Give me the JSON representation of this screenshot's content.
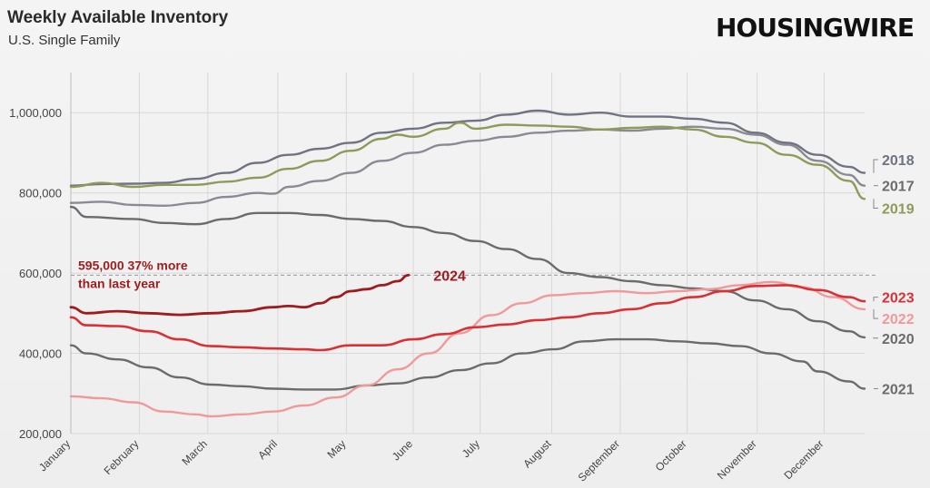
{
  "header": {
    "title": "Weekly Available Inventory",
    "subtitle": "U.S. Single Family",
    "brand": "HOUSINGWIRE"
  },
  "colors": {
    "background": "#eeeeee",
    "grid": "#d8d8d8",
    "axis_text": "#444444",
    "reference_line": "#999999"
  },
  "chart_data": {
    "type": "line",
    "title": "Weekly Available Inventory",
    "subtitle": "U.S. Single Family",
    "x_unit": "week of year",
    "xlim": [
      1,
      52
    ],
    "ylim": [
      200000,
      1100000
    ],
    "y_ticks": [
      200000,
      400000,
      600000,
      800000,
      1000000
    ],
    "y_tick_labels": [
      "200,000",
      "400,000",
      "600,000",
      "800,000",
      "1,000,000"
    ],
    "grid": true,
    "legend": "end-of-line labels at right",
    "months": [
      "January",
      "February",
      "March",
      "April",
      "May",
      "June",
      "July",
      "August",
      "September",
      "October",
      "November",
      "December"
    ],
    "month_weeks": [
      1,
      5.4,
      9.8,
      14.3,
      18.7,
      23,
      27.3,
      31.9,
      36.3,
      40.6,
      45.1,
      49.4
    ],
    "reference_line": {
      "y": 595000,
      "label": "595,000 37% more than last year",
      "line1": "595,000 37% more",
      "line2": "than last year"
    },
    "series": [
      {
        "name": "2018",
        "color": "#6f7382",
        "width": 2.4,
        "points": [
          [
            1,
            818000
          ],
          [
            3,
            822000
          ],
          [
            5,
            823000
          ],
          [
            7,
            825000
          ],
          [
            9,
            835000
          ],
          [
            11,
            850000
          ],
          [
            13,
            875000
          ],
          [
            15,
            895000
          ],
          [
            17,
            910000
          ],
          [
            19,
            925000
          ],
          [
            21,
            950000
          ],
          [
            23,
            960000
          ],
          [
            25,
            975000
          ],
          [
            27,
            980000
          ],
          [
            29,
            995000
          ],
          [
            31,
            1005000
          ],
          [
            33,
            995000
          ],
          [
            35,
            1000000
          ],
          [
            37,
            990000
          ],
          [
            39,
            990000
          ],
          [
            41,
            985000
          ],
          [
            43,
            975000
          ],
          [
            45,
            950000
          ],
          [
            47,
            925000
          ],
          [
            49,
            895000
          ],
          [
            51,
            865000
          ],
          [
            52,
            850000
          ]
        ]
      },
      {
        "name": "2017",
        "color": "#8a8a95",
        "width": 2.4,
        "points": [
          [
            1,
            775000
          ],
          [
            3,
            778000
          ],
          [
            5,
            770000
          ],
          [
            7,
            768000
          ],
          [
            9,
            775000
          ],
          [
            11,
            790000
          ],
          [
            13,
            800000
          ],
          [
            14,
            798000
          ],
          [
            15,
            815000
          ],
          [
            17,
            830000
          ],
          [
            19,
            850000
          ],
          [
            21,
            880000
          ],
          [
            23,
            900000
          ],
          [
            25,
            920000
          ],
          [
            27,
            930000
          ],
          [
            29,
            940000
          ],
          [
            31,
            950000
          ],
          [
            33,
            955000
          ],
          [
            35,
            958000
          ],
          [
            37,
            955000
          ],
          [
            39,
            960000
          ],
          [
            41,
            965000
          ],
          [
            43,
            960000
          ],
          [
            45,
            945000
          ],
          [
            47,
            920000
          ],
          [
            49,
            880000
          ],
          [
            51,
            845000
          ],
          [
            52,
            818000
          ]
        ]
      },
      {
        "name": "2019",
        "color": "#8e9a5a",
        "width": 2.4,
        "points": [
          [
            1,
            815000
          ],
          [
            3,
            825000
          ],
          [
            5,
            815000
          ],
          [
            7,
            820000
          ],
          [
            9,
            820000
          ],
          [
            11,
            828000
          ],
          [
            13,
            838000
          ],
          [
            15,
            860000
          ],
          [
            17,
            880000
          ],
          [
            19,
            905000
          ],
          [
            21,
            935000
          ],
          [
            22,
            945000
          ],
          [
            23,
            940000
          ],
          [
            25,
            960000
          ],
          [
            26,
            975000
          ],
          [
            27,
            960000
          ],
          [
            29,
            970000
          ],
          [
            31,
            968000
          ],
          [
            33,
            965000
          ],
          [
            35,
            958000
          ],
          [
            37,
            962000
          ],
          [
            39,
            965000
          ],
          [
            41,
            958000
          ],
          [
            43,
            940000
          ],
          [
            45,
            925000
          ],
          [
            47,
            895000
          ],
          [
            49,
            870000
          ],
          [
            51,
            830000
          ],
          [
            52,
            785000
          ]
        ]
      },
      {
        "name": "2020",
        "color": "#6b6b6b",
        "width": 2.4,
        "points": [
          [
            1,
            765000
          ],
          [
            2,
            740000
          ],
          [
            5,
            735000
          ],
          [
            7,
            725000
          ],
          [
            9,
            722000
          ],
          [
            11,
            735000
          ],
          [
            13,
            750000
          ],
          [
            15,
            750000
          ],
          [
            17,
            745000
          ],
          [
            19,
            735000
          ],
          [
            21,
            730000
          ],
          [
            23,
            715000
          ],
          [
            25,
            700000
          ],
          [
            27,
            680000
          ],
          [
            29,
            660000
          ],
          [
            31,
            635000
          ],
          [
            33,
            600000
          ],
          [
            35,
            590000
          ],
          [
            37,
            580000
          ],
          [
            39,
            570000
          ],
          [
            41,
            562000
          ],
          [
            43,
            555000
          ],
          [
            45,
            532000
          ],
          [
            47,
            510000
          ],
          [
            49,
            480000
          ],
          [
            51,
            455000
          ],
          [
            52,
            440000
          ]
        ]
      },
      {
        "name": "2021",
        "color": "#6b6b6b",
        "width": 2.4,
        "points": [
          [
            1,
            420000
          ],
          [
            2,
            400000
          ],
          [
            4,
            385000
          ],
          [
            6,
            365000
          ],
          [
            8,
            340000
          ],
          [
            10,
            322000
          ],
          [
            12,
            318000
          ],
          [
            14,
            312000
          ],
          [
            16,
            310000
          ],
          [
            18,
            310000
          ],
          [
            20,
            320000
          ],
          [
            22,
            325000
          ],
          [
            24,
            340000
          ],
          [
            26,
            358000
          ],
          [
            28,
            375000
          ],
          [
            30,
            400000
          ],
          [
            32,
            410000
          ],
          [
            34,
            430000
          ],
          [
            36,
            435000
          ],
          [
            38,
            435000
          ],
          [
            40,
            430000
          ],
          [
            42,
            425000
          ],
          [
            44,
            418000
          ],
          [
            46,
            400000
          ],
          [
            48,
            380000
          ],
          [
            49,
            355000
          ],
          [
            51,
            330000
          ],
          [
            52,
            312000
          ]
        ]
      },
      {
        "name": "2022",
        "color": "#f0999a",
        "width": 2.4,
        "points": [
          [
            1,
            293000
          ],
          [
            3,
            288000
          ],
          [
            5,
            278000
          ],
          [
            7,
            255000
          ],
          [
            9,
            248000
          ],
          [
            10,
            243000
          ],
          [
            12,
            248000
          ],
          [
            14,
            255000
          ],
          [
            16,
            270000
          ],
          [
            18,
            290000
          ],
          [
            20,
            320000
          ],
          [
            22,
            360000
          ],
          [
            24,
            400000
          ],
          [
            26,
            450000
          ],
          [
            28,
            495000
          ],
          [
            30,
            525000
          ],
          [
            32,
            545000
          ],
          [
            34,
            550000
          ],
          [
            36,
            555000
          ],
          [
            38,
            550000
          ],
          [
            40,
            555000
          ],
          [
            42,
            560000
          ],
          [
            44,
            570000
          ],
          [
            46,
            578000
          ],
          [
            48,
            565000
          ],
          [
            50,
            540000
          ],
          [
            52,
            510000
          ]
        ]
      },
      {
        "name": "2023",
        "color": "#d93035",
        "width": 2.6,
        "points": [
          [
            1,
            490000
          ],
          [
            2,
            470000
          ],
          [
            4,
            468000
          ],
          [
            6,
            455000
          ],
          [
            8,
            435000
          ],
          [
            10,
            418000
          ],
          [
            12,
            415000
          ],
          [
            14,
            412000
          ],
          [
            16,
            410000
          ],
          [
            17,
            408000
          ],
          [
            19,
            420000
          ],
          [
            21,
            420000
          ],
          [
            23,
            435000
          ],
          [
            25,
            448000
          ],
          [
            27,
            465000
          ],
          [
            29,
            472000
          ],
          [
            31,
            483000
          ],
          [
            33,
            490000
          ],
          [
            35,
            500000
          ],
          [
            37,
            510000
          ],
          [
            39,
            525000
          ],
          [
            41,
            540000
          ],
          [
            43,
            555000
          ],
          [
            45,
            568000
          ],
          [
            47,
            570000
          ],
          [
            49,
            558000
          ],
          [
            51,
            540000
          ],
          [
            52,
            530000
          ]
        ]
      },
      {
        "name": "2024",
        "color": "#9e1b1e",
        "width": 2.8,
        "points": [
          [
            1,
            515000
          ],
          [
            2,
            500000
          ],
          [
            4,
            505000
          ],
          [
            6,
            500000
          ],
          [
            8,
            496000
          ],
          [
            10,
            500000
          ],
          [
            12,
            505000
          ],
          [
            14,
            515000
          ],
          [
            15,
            518000
          ],
          [
            16,
            515000
          ],
          [
            17,
            525000
          ],
          [
            18,
            540000
          ],
          [
            19,
            555000
          ],
          [
            20,
            560000
          ],
          [
            21,
            570000
          ],
          [
            22,
            580000
          ],
          [
            22.7,
            595000
          ]
        ]
      }
    ],
    "end_labels": [
      {
        "name": "2018",
        "label": "2018",
        "color": "#6f7382",
        "label_y": 883000
      },
      {
        "name": "2017",
        "label": "2017",
        "color": "#6b6b6b",
        "label_y": 818000
      },
      {
        "name": "2019",
        "label": "2019",
        "color": "#8e9a5a",
        "label_y": 762000
      },
      {
        "name": "2023",
        "label": "2023",
        "color": "#d93035",
        "label_y": 540000
      },
      {
        "name": "2022",
        "label": "2022",
        "color": "#f0999a",
        "label_y": 487000
      },
      {
        "name": "2020",
        "label": "2020",
        "color": "#6b6b6b",
        "label_y": 438000
      },
      {
        "name": "2021",
        "label": "2021",
        "color": "#6b6b6b",
        "label_y": 312000
      }
    ],
    "inline_label": {
      "label": "2024",
      "color": "#9e1b1e",
      "x_week": 24.3,
      "y": 595000
    }
  }
}
